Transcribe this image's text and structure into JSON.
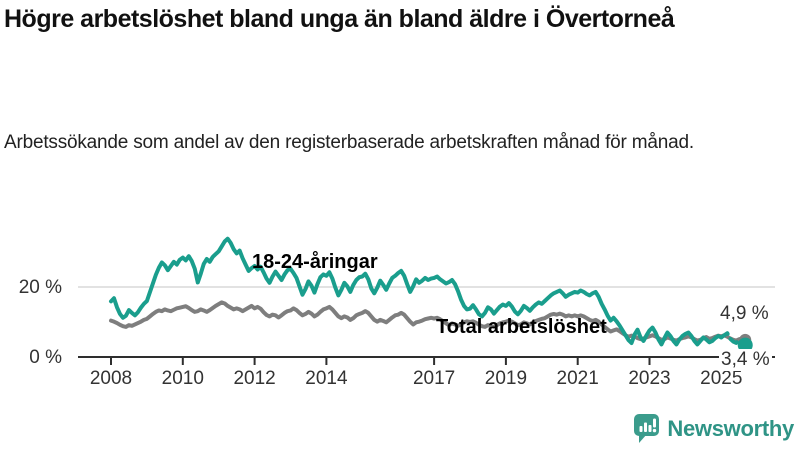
{
  "header": {
    "title": "Högre arbetslöshet bland unga än bland äldre i Övertorneå",
    "subtitle": "Arbetssökande som andel av den registerbaserade arbetskraften månad för månad."
  },
  "branding": {
    "name": "Newsworthy",
    "icon": "bar-chart-speech-bubble-icon",
    "icon_color": "#3b9c8c",
    "text_color": "#2f9486"
  },
  "colors": {
    "youth_line": "#1a9e8d",
    "total_line": "#7e7e7e",
    "gridline": "#d9d9d9",
    "axis": "#2e2e2e",
    "text": "#333333"
  },
  "chart_data": {
    "type": "line",
    "title": "Högre arbetslöshet bland unga än bland äldre i Övertorneå",
    "subtitle": "Arbetssökande som andel av den registerbaserade arbetskraften månad för månad.",
    "unit": "%",
    "interval": "monthly",
    "x_start": "2008-01",
    "x_end": "2025-09",
    "x_tick_years": [
      2008,
      2010,
      2012,
      2014,
      2017,
      2019,
      2021,
      2023,
      2025
    ],
    "x_tick_labels": [
      "2008",
      "2010",
      "2012",
      "2014",
      "2017",
      "2019",
      "2021",
      "2023",
      "2025"
    ],
    "y_ticks": [
      {
        "value": 0,
        "label": "0 %"
      },
      {
        "value": 20,
        "label": "20 %"
      }
    ],
    "ylim": [
      0,
      36
    ],
    "grid": "horizontal line at 20% only",
    "legend": "inline series labels next to lines",
    "series": [
      {
        "name": "18-24-åringar",
        "color": "#1a9e8d",
        "end_value": 3.4,
        "end_label": "3,4 %",
        "dashed_from_index": 204,
        "values": [
          15.9,
          16.8,
          14.2,
          12.3,
          11.2,
          11.8,
          13.4,
          12.6,
          11.9,
          12.8,
          14.1,
          15.2,
          16.0,
          18.5,
          21.0,
          23.5,
          25.5,
          27.0,
          26.2,
          24.8,
          26.0,
          27.2,
          26.4,
          27.8,
          28.4,
          27.6,
          28.8,
          27.4,
          25.2,
          21.3,
          23.8,
          26.6,
          28.0,
          27.2,
          28.6,
          29.4,
          30.2,
          31.6,
          33.0,
          33.8,
          32.6,
          30.8,
          29.6,
          30.4,
          28.2,
          26.4,
          24.6,
          25.4,
          26.0,
          25.0,
          25.8,
          24.2,
          22.4,
          21.2,
          23.0,
          24.4,
          23.2,
          22.0,
          23.6,
          24.8,
          25.2,
          24.0,
          22.6,
          20.2,
          17.8,
          19.4,
          21.6,
          20.4,
          18.4,
          20.8,
          22.8,
          23.6,
          23.2,
          24.2,
          22.4,
          19.8,
          17.6,
          19.2,
          21.2,
          20.2,
          18.6,
          20.6,
          22.0,
          22.8,
          23.0,
          23.8,
          22.2,
          19.6,
          18.2,
          19.8,
          21.8,
          20.6,
          19.2,
          21.0,
          22.6,
          23.2,
          24.0,
          24.6,
          23.2,
          20.8,
          18.6,
          20.2,
          22.2,
          21.2,
          21.8,
          22.6,
          22.0,
          22.4,
          22.6,
          23.0,
          22.2,
          21.6,
          21.0,
          21.4,
          22.0,
          20.8,
          18.8,
          16.4,
          14.6,
          13.6,
          13.8,
          14.8,
          13.6,
          12.2,
          11.6,
          12.6,
          14.2,
          13.6,
          12.4,
          13.4,
          14.4,
          15.0,
          14.6,
          15.4,
          14.4,
          13.0,
          12.2,
          13.2,
          14.6,
          14.0,
          13.2,
          14.2,
          15.0,
          15.6,
          15.2,
          16.0,
          16.8,
          17.6,
          18.2,
          18.6,
          19.0,
          18.2,
          17.2,
          17.8,
          18.2,
          18.6,
          18.4,
          19.0,
          18.6,
          18.0,
          17.6,
          18.2,
          18.6,
          17.2,
          15.2,
          13.6,
          11.8,
          10.4,
          11.2,
          10.2,
          9.0,
          7.6,
          6.2,
          4.8,
          4.0,
          6.4,
          7.8,
          5.6,
          4.6,
          6.2,
          7.6,
          8.4,
          7.0,
          5.0,
          3.6,
          5.4,
          7.0,
          6.0,
          4.6,
          3.6,
          5.0,
          6.0,
          6.6,
          7.0,
          6.0,
          4.6,
          3.6,
          4.6,
          5.6,
          5.0,
          4.2,
          4.6,
          5.4,
          6.0,
          5.6,
          6.2,
          6.8,
          5.2,
          4.4,
          4.0,
          5.0,
          4.4,
          3.4
        ]
      },
      {
        "name": "Total arbetslöshet",
        "color": "#7e7e7e",
        "end_value": 4.9,
        "end_label": "4,9 %",
        "dashed_from_index": null,
        "values": [
          10.4,
          10.1,
          9.7,
          9.2,
          8.8,
          8.6,
          9.1,
          8.9,
          9.3,
          9.7,
          10.1,
          10.6,
          10.9,
          11.6,
          12.3,
          12.9,
          13.3,
          13.1,
          13.6,
          13.3,
          13.1,
          13.5,
          13.9,
          14.1,
          14.3,
          14.5,
          14.0,
          13.4,
          12.9,
          13.1,
          13.6,
          13.3,
          12.9,
          13.4,
          14.0,
          14.6,
          15.1,
          15.6,
          15.3,
          14.6,
          14.1,
          13.6,
          13.9,
          13.6,
          13.1,
          13.6,
          14.1,
          14.6,
          13.9,
          14.3,
          13.8,
          12.8,
          12.0,
          11.6,
          12.1,
          11.9,
          11.3,
          11.9,
          12.6,
          13.1,
          13.3,
          13.9,
          13.4,
          12.6,
          11.9,
          12.3,
          12.9,
          12.4,
          11.6,
          12.1,
          12.9,
          13.6,
          13.9,
          14.3,
          13.6,
          12.6,
          11.6,
          11.1,
          11.6,
          11.3,
          10.6,
          11.1,
          11.9,
          12.3,
          12.6,
          13.1,
          12.6,
          11.6,
          10.6,
          10.1,
          10.6,
          10.3,
          9.9,
          10.6,
          11.3,
          11.9,
          12.1,
          12.6,
          12.1,
          11.1,
          10.1,
          9.3,
          9.9,
          10.1,
          10.4,
          10.8,
          11.0,
          11.2,
          11.0,
          11.2,
          10.8,
          10.2,
          9.6,
          9.1,
          9.6,
          9.3,
          8.9,
          9.3,
          9.9,
          10.2,
          10.0,
          10.2,
          9.8,
          9.2,
          8.8,
          8.6,
          9.1,
          8.9,
          8.6,
          9.1,
          9.6,
          9.9,
          10.1,
          10.4,
          10.1,
          9.6,
          9.1,
          9.3,
          9.9,
          9.6,
          9.3,
          9.9,
          10.3,
          10.6,
          10.9,
          11.1,
          11.6,
          12.1,
          12.3,
          12.1,
          12.4,
          12.1,
          11.6,
          11.9,
          11.6,
          11.9,
          11.6,
          11.9,
          11.6,
          11.1,
          10.6,
          10.3,
          10.6,
          10.1,
          9.3,
          8.6,
          7.9,
          7.3,
          7.6,
          7.9,
          7.4,
          6.8,
          6.2,
          5.8,
          6.1,
          5.9,
          5.4,
          5.1,
          5.3,
          5.6,
          5.9,
          6.2,
          5.9,
          5.4,
          4.9,
          5.1,
          5.6,
          5.3,
          4.9,
          4.7,
          5.1,
          5.4,
          5.6,
          5.9,
          5.6,
          5.1,
          4.7,
          4.9,
          5.4,
          5.7,
          5.2,
          5.4,
          5.8,
          6.1,
          5.9,
          6.2,
          5.8,
          5.3,
          4.9,
          4.7,
          5.1,
          5.3,
          4.9
        ]
      }
    ]
  }
}
